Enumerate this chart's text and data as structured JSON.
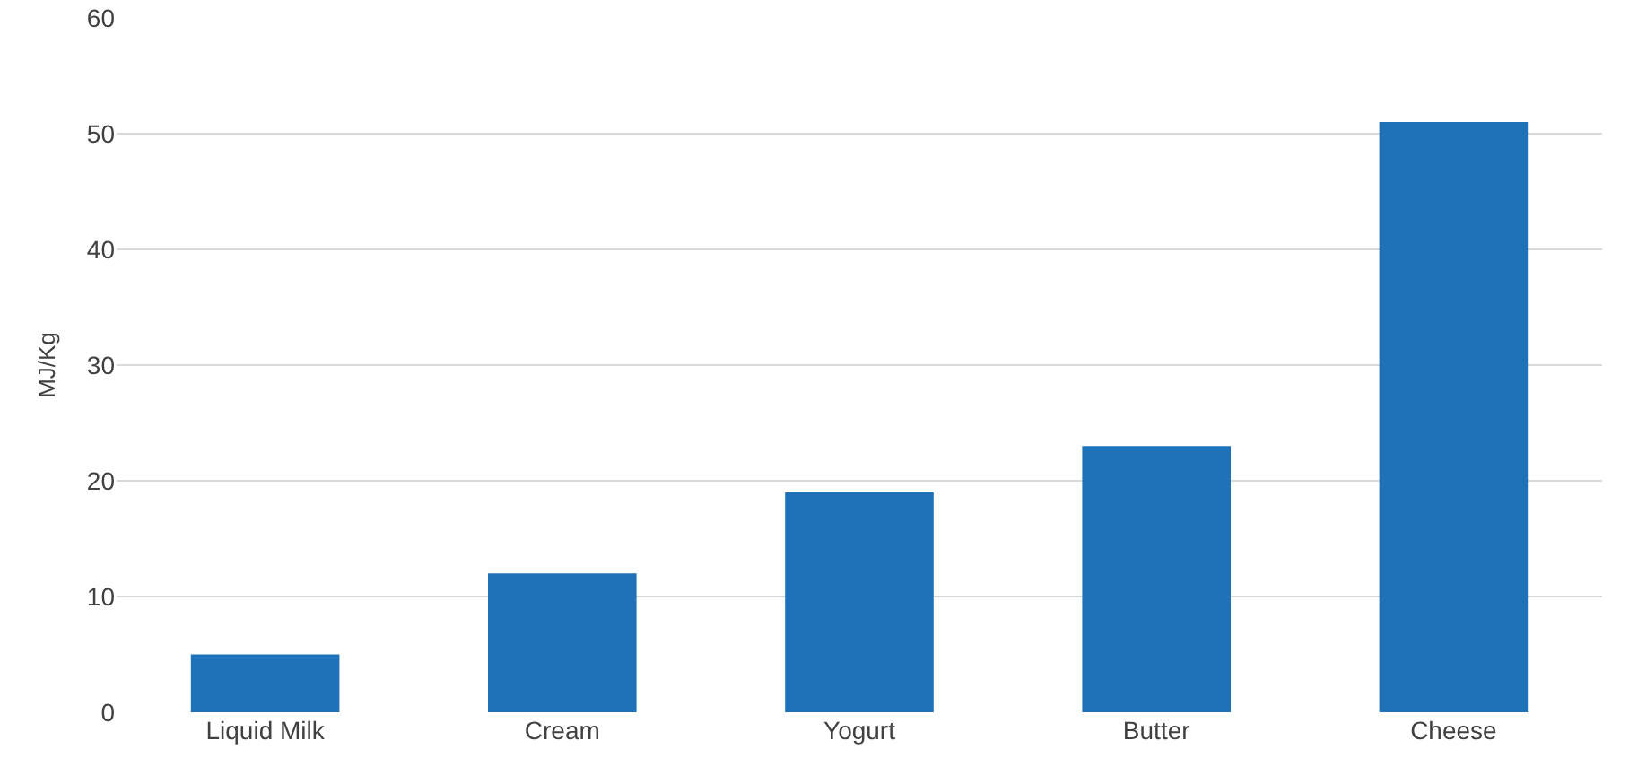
{
  "chart_data": {
    "type": "bar",
    "ylabel": "MJ/Kg",
    "categories": [
      "Liquid Milk",
      "Cream",
      "Yogurt",
      "Butter",
      "Cheese"
    ],
    "values": [
      5,
      12,
      19,
      23,
      51
    ],
    "color": "#1f72b8",
    "ylim": [
      0,
      60
    ],
    "yticks": [
      0,
      10,
      20,
      30,
      40,
      50,
      60
    ],
    "grid": "y"
  }
}
